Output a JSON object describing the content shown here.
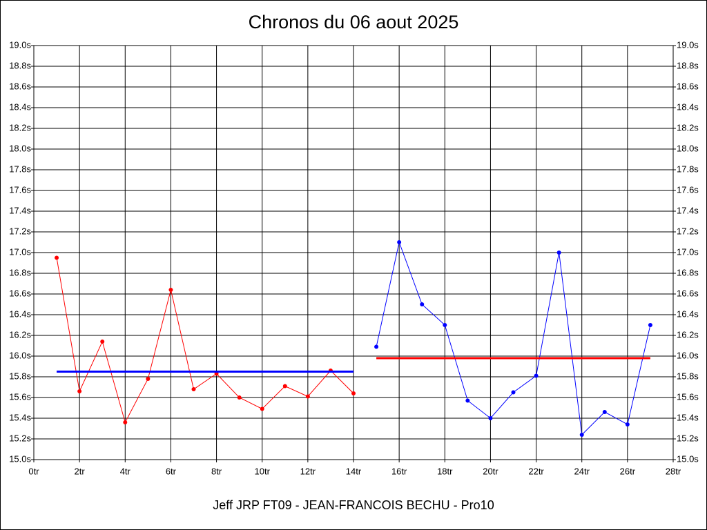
{
  "chart_data": {
    "type": "line",
    "title": "Chronos du 06 aout 2025",
    "subtitle": "Jeff JRP FT09 - JEAN-FRANCOIS BECHU - Pro10",
    "xlim": [
      0,
      28
    ],
    "xticks": [
      {
        "value": 0,
        "label": "0tr"
      },
      {
        "value": 2,
        "label": "2tr"
      },
      {
        "value": 4,
        "label": "4tr"
      },
      {
        "value": 6,
        "label": "6tr"
      },
      {
        "value": 8,
        "label": "8tr"
      },
      {
        "value": 10,
        "label": "10tr"
      },
      {
        "value": 12,
        "label": "12tr"
      },
      {
        "value": 14,
        "label": "14tr"
      },
      {
        "value": 16,
        "label": "16tr"
      },
      {
        "value": 18,
        "label": "18tr"
      },
      {
        "value": 20,
        "label": "20tr"
      },
      {
        "value": 22,
        "label": "22tr"
      },
      {
        "value": 24,
        "label": "24tr"
      },
      {
        "value": 26,
        "label": "26tr"
      },
      {
        "value": 28,
        "label": "28tr"
      }
    ],
    "ylim": [
      15.0,
      19.0
    ],
    "yticks": [
      {
        "value": 15.0,
        "label": "15.0s"
      },
      {
        "value": 15.2,
        "label": "15.2s"
      },
      {
        "value": 15.4,
        "label": "15.4s"
      },
      {
        "value": 15.6,
        "label": "15.6s"
      },
      {
        "value": 15.8,
        "label": "15.8s"
      },
      {
        "value": 16.0,
        "label": "16.0s"
      },
      {
        "value": 16.2,
        "label": "16.2s"
      },
      {
        "value": 16.4,
        "label": "16.4s"
      },
      {
        "value": 16.6,
        "label": "16.6s"
      },
      {
        "value": 16.8,
        "label": "16.8s"
      },
      {
        "value": 17.0,
        "label": "17.0s"
      },
      {
        "value": 17.2,
        "label": "17.2s"
      },
      {
        "value": 17.4,
        "label": "17.4s"
      },
      {
        "value": 17.6,
        "label": "17.6s"
      },
      {
        "value": 17.8,
        "label": "17.8s"
      },
      {
        "value": 18.0,
        "label": "18.0s"
      },
      {
        "value": 18.2,
        "label": "18.2s"
      },
      {
        "value": 18.4,
        "label": "18.4s"
      },
      {
        "value": 18.6,
        "label": "18.6s"
      },
      {
        "value": 18.8,
        "label": "18.8s"
      },
      {
        "value": 19.0,
        "label": "19.0s"
      }
    ],
    "grid": true,
    "series": [
      {
        "color": "#ff0000",
        "markers": true,
        "x": [
          1,
          2,
          3,
          4,
          5,
          6,
          7,
          8,
          9,
          10,
          11,
          12,
          13,
          14
        ],
        "values": [
          16.95,
          15.66,
          16.14,
          15.36,
          15.78,
          16.64,
          15.68,
          15.83,
          15.6,
          15.49,
          15.71,
          15.61,
          15.86,
          15.64
        ]
      },
      {
        "color": "#0000ff",
        "markers": true,
        "x": [
          15,
          16,
          17,
          18,
          19,
          20,
          21,
          22,
          23,
          24,
          25,
          26,
          27
        ],
        "values": [
          16.09,
          17.1,
          16.5,
          16.3,
          15.57,
          15.4,
          15.65,
          15.81,
          17.0,
          15.24,
          15.46,
          15.34,
          16.3
        ]
      },
      {
        "color": "#0000ff",
        "markers": false,
        "x": [
          1,
          14
        ],
        "values": [
          15.85,
          15.85
        ]
      },
      {
        "color": "#ff0000",
        "markers": false,
        "x": [
          15,
          27
        ],
        "values": [
          15.98,
          15.98
        ]
      }
    ]
  }
}
